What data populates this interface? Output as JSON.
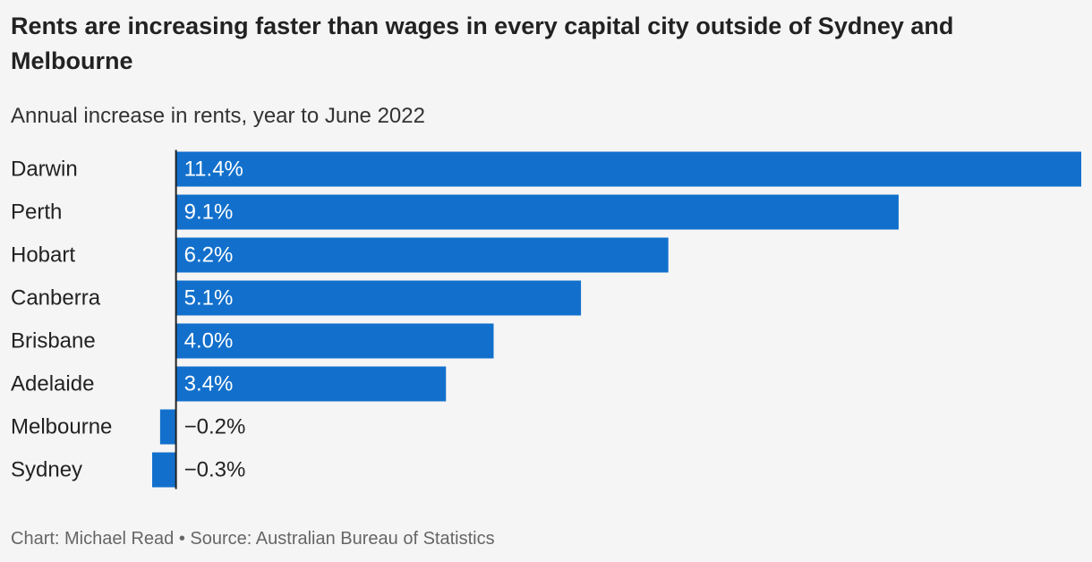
{
  "chart_data": {
    "type": "bar",
    "orientation": "horizontal",
    "title": "Rents are increasing faster than wages in every capital city outside of Sydney and Melbourne",
    "subtitle": "Annual increase in rents, year to June 2022",
    "categories": [
      "Darwin",
      "Perth",
      "Hobart",
      "Canberra",
      "Brisbane",
      "Adelaide",
      "Melbourne",
      "Sydney"
    ],
    "values": [
      11.4,
      9.1,
      6.2,
      5.1,
      4.0,
      3.4,
      -0.2,
      -0.3
    ],
    "value_labels": [
      "11.4%",
      "9.1%",
      "6.2%",
      "5.1%",
      "4.0%",
      "3.4%",
      "−0.2%",
      "−0.3%"
    ],
    "xlim": [
      -0.3,
      11.4
    ],
    "grid": false,
    "bar_color": "#1270cc"
  },
  "footer": {
    "credit": "Chart: Michael Read • Source: Australian Bureau of Statistics"
  }
}
